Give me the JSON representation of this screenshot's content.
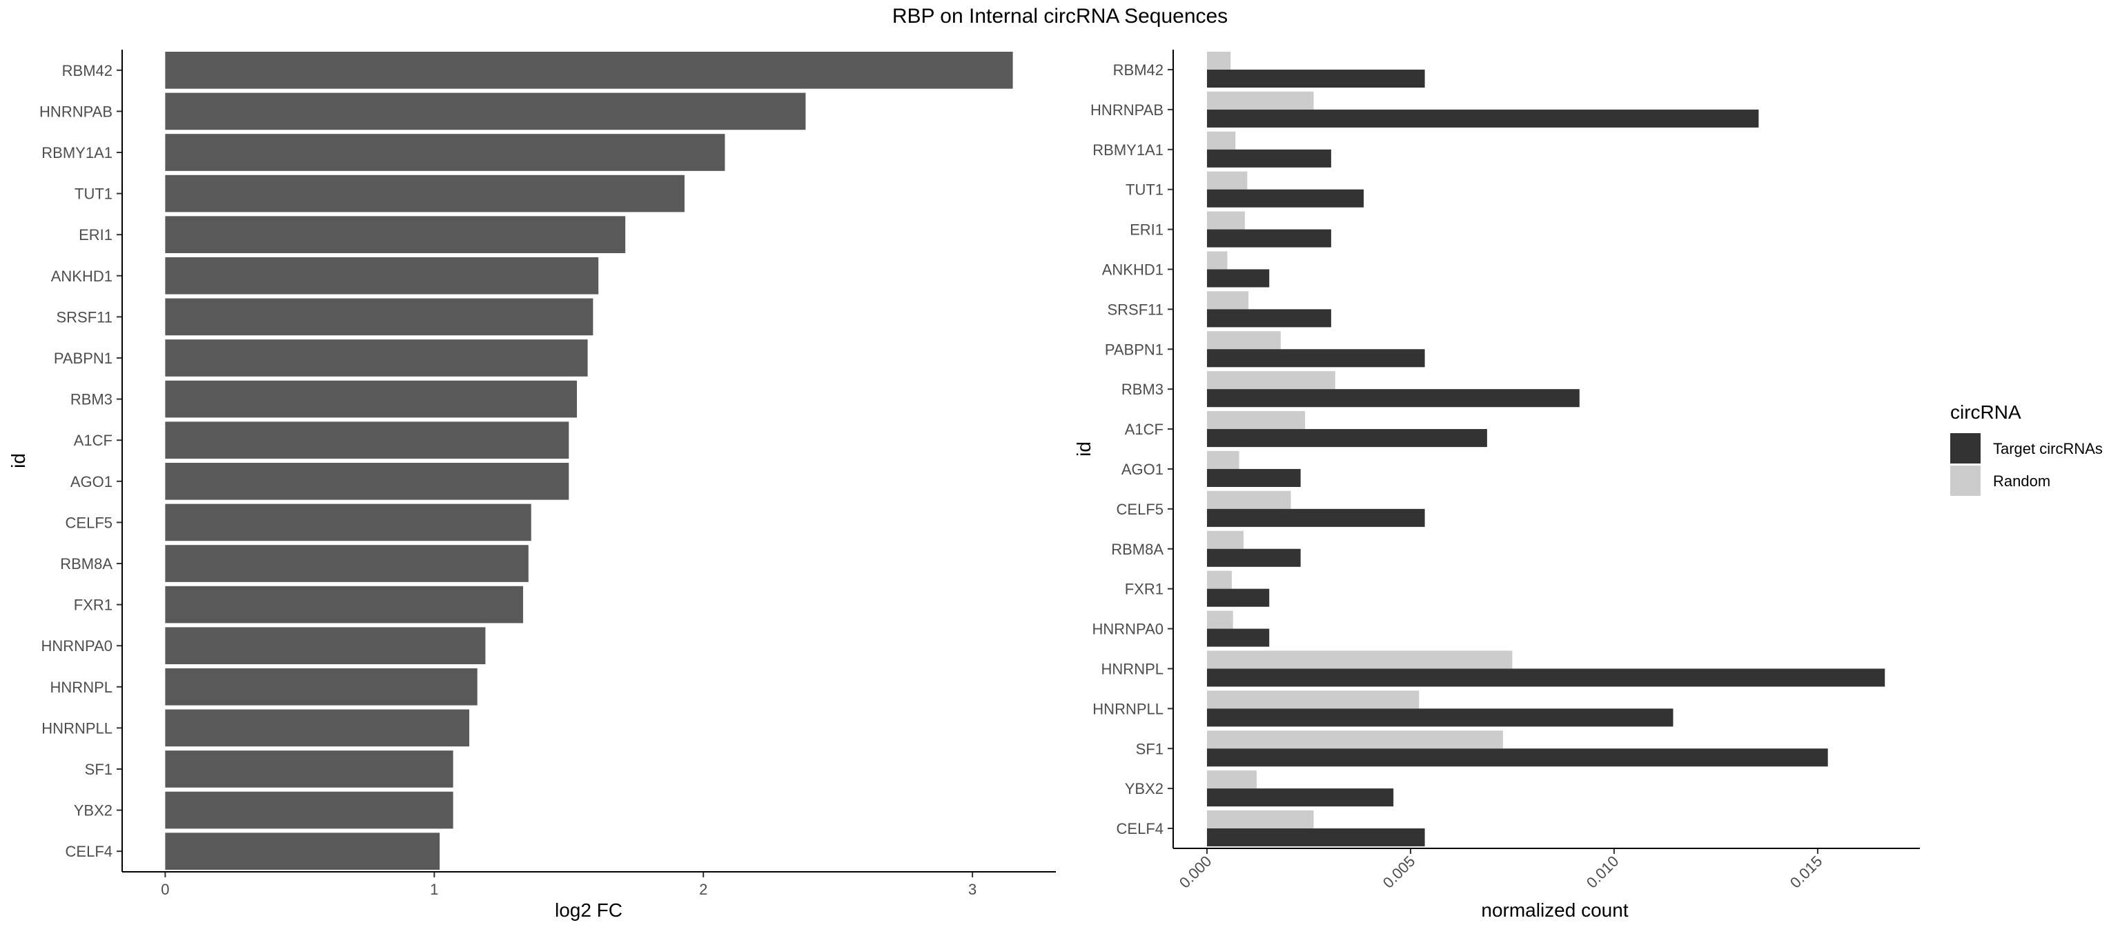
{
  "title": "RBP on Internal circRNA Sequences",
  "chart_data": [
    {
      "type": "bar",
      "orientation": "horizontal",
      "categories": [
        "RBM42",
        "HNRNPAB",
        "RBMY1A1",
        "TUT1",
        "ERI1",
        "ANKHD1",
        "SRSF11",
        "PABPN1",
        "RBM3",
        "A1CF",
        "AGO1",
        "CELF5",
        "RBM8A",
        "FXR1",
        "HNRNPA0",
        "HNRNPL",
        "HNRNPLL",
        "SF1",
        "YBX2",
        "CELF4"
      ],
      "values": [
        3.15,
        2.38,
        2.08,
        1.93,
        1.71,
        1.61,
        1.59,
        1.57,
        1.53,
        1.5,
        1.5,
        1.36,
        1.35,
        1.33,
        1.19,
        1.16,
        1.13,
        1.07,
        1.07,
        1.02
      ],
      "xlabel": "log2 FC",
      "ylabel": "id",
      "xlim": [
        -0.16,
        3.31
      ],
      "xticks": [
        "0",
        "1",
        "2",
        "3"
      ],
      "bar_color": "#595959",
      "grid": false
    },
    {
      "type": "bar",
      "orientation": "horizontal",
      "grouped": true,
      "categories": [
        "RBM42",
        "HNRNPAB",
        "RBMY1A1",
        "TUT1",
        "ERI1",
        "ANKHD1",
        "SRSF11",
        "PABPN1",
        "RBM3",
        "A1CF",
        "AGO1",
        "CELF5",
        "RBM8A",
        "FXR1",
        "HNRNPA0",
        "HNRNPL",
        "HNRNPLL",
        "SF1",
        "YBX2",
        "CELF4"
      ],
      "series": [
        {
          "name": "Target circRNAs",
          "color": "#333333",
          "values": [
            0.00535,
            0.01355,
            0.00305,
            0.00385,
            0.00305,
            0.00153,
            0.00305,
            0.00535,
            0.00915,
            0.00688,
            0.0023,
            0.00535,
            0.0023,
            0.00153,
            0.00153,
            0.01665,
            0.01145,
            0.01525,
            0.00458,
            0.00535
          ]
        },
        {
          "name": "Random",
          "color": "#cccccc",
          "values": [
            0.00058,
            0.00262,
            0.0007,
            0.00099,
            0.00093,
            0.0005,
            0.00102,
            0.00181,
            0.00315,
            0.00241,
            0.00079,
            0.00206,
            0.0009,
            0.00061,
            0.00064,
            0.0075,
            0.00521,
            0.00727,
            0.00122,
            0.00262
          ]
        }
      ],
      "xlabel": "normalized count",
      "ylabel": "id",
      "xlim": [
        -0.00083,
        0.01751
      ],
      "xticks": [
        "0.000",
        "0.005",
        "0.010",
        "0.015"
      ],
      "legend_title": "circRNA",
      "legend_position": "right",
      "grid": false
    }
  ]
}
